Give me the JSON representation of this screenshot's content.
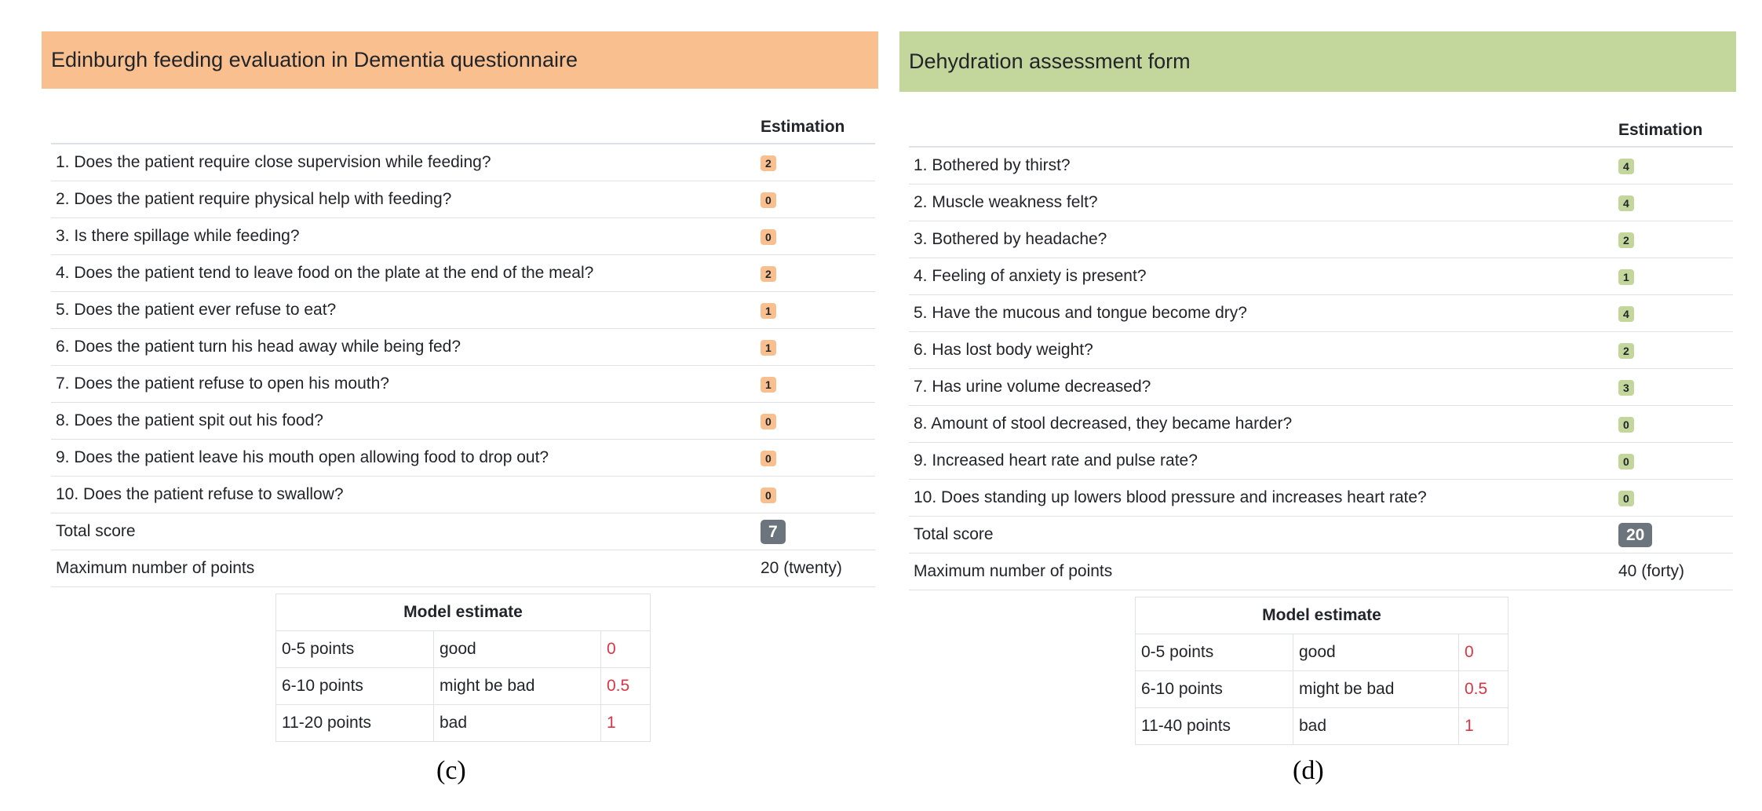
{
  "left": {
    "title": "Edinburgh feeding evaluation in Dementia questionnaire",
    "estimation_header": "Estimation",
    "questions": [
      {
        "text": "1. Does the patient require close supervision while feeding?",
        "score": "2"
      },
      {
        "text": "2. Does the patient require physical help with feeding?",
        "score": "0"
      },
      {
        "text": "3. Is there spillage while feeding?",
        "score": "0"
      },
      {
        "text": "4. Does the patient tend to leave food on the plate at the end of the meal?",
        "score": "2"
      },
      {
        "text": "5. Does the patient ever refuse to eat?",
        "score": "1"
      },
      {
        "text": "6. Does the patient turn his head away while being fed?",
        "score": "1"
      },
      {
        "text": "7. Does the patient refuse to open his mouth?",
        "score": "1"
      },
      {
        "text": "8. Does the patient spit out his food?",
        "score": "0"
      },
      {
        "text": "9. Does the patient leave his mouth open allowing food to drop out?",
        "score": "0"
      },
      {
        "text": "10. Does the patient refuse to swallow?",
        "score": "0"
      }
    ],
    "total_label": "Total score",
    "total_value": "7",
    "max_label": "Maximum number of points",
    "max_value": "20 (twenty)",
    "model": {
      "header": "Model estimate",
      "rows": [
        {
          "range": "0-5 points",
          "label": "good",
          "value": "0"
        },
        {
          "range": "6-10 points",
          "label": "might be bad",
          "value": "0.5"
        },
        {
          "range": "11-20 points",
          "label": "bad",
          "value": "1"
        }
      ]
    },
    "caption": "(c)"
  },
  "right": {
    "title": "Dehydration assessment form",
    "estimation_header": "Estimation",
    "questions": [
      {
        "text": "1. Bothered by thirst?",
        "score": "4"
      },
      {
        "text": "2. Muscle weakness felt?",
        "score": "4"
      },
      {
        "text": "3. Bothered by headache?",
        "score": "2"
      },
      {
        "text": "4. Feeling of anxiety is present?",
        "score": "1"
      },
      {
        "text": "5. Have the mucous and tongue become dry?",
        "score": "4"
      },
      {
        "text": "6. Has lost body weight?",
        "score": "2"
      },
      {
        "text": "7. Has urine volume decreased?",
        "score": "3"
      },
      {
        "text": "8. Amount of stool decreased, they became harder?",
        "score": "0"
      },
      {
        "text": "9. Increased heart rate and pulse rate?",
        "score": "0"
      },
      {
        "text": "10. Does standing up lowers blood pressure and increases heart rate?",
        "score": "0"
      }
    ],
    "total_label": "Total score",
    "total_value": "20",
    "max_label": "Maximum number of points",
    "max_value": "40 (forty)",
    "model": {
      "header": "Model estimate",
      "rows": [
        {
          "range": "0-5 points",
          "label": "good",
          "value": "0"
        },
        {
          "range": "6-10 points",
          "label": "might be bad",
          "value": "0.5"
        },
        {
          "range": "11-40 points",
          "label": "bad",
          "value": "1"
        }
      ]
    },
    "caption": "(d)"
  },
  "colors": {
    "left_accent": "#f9bf8f",
    "right_accent": "#c3d69b",
    "total_badge": "#6c757d",
    "model_value": "#dc3545"
  }
}
